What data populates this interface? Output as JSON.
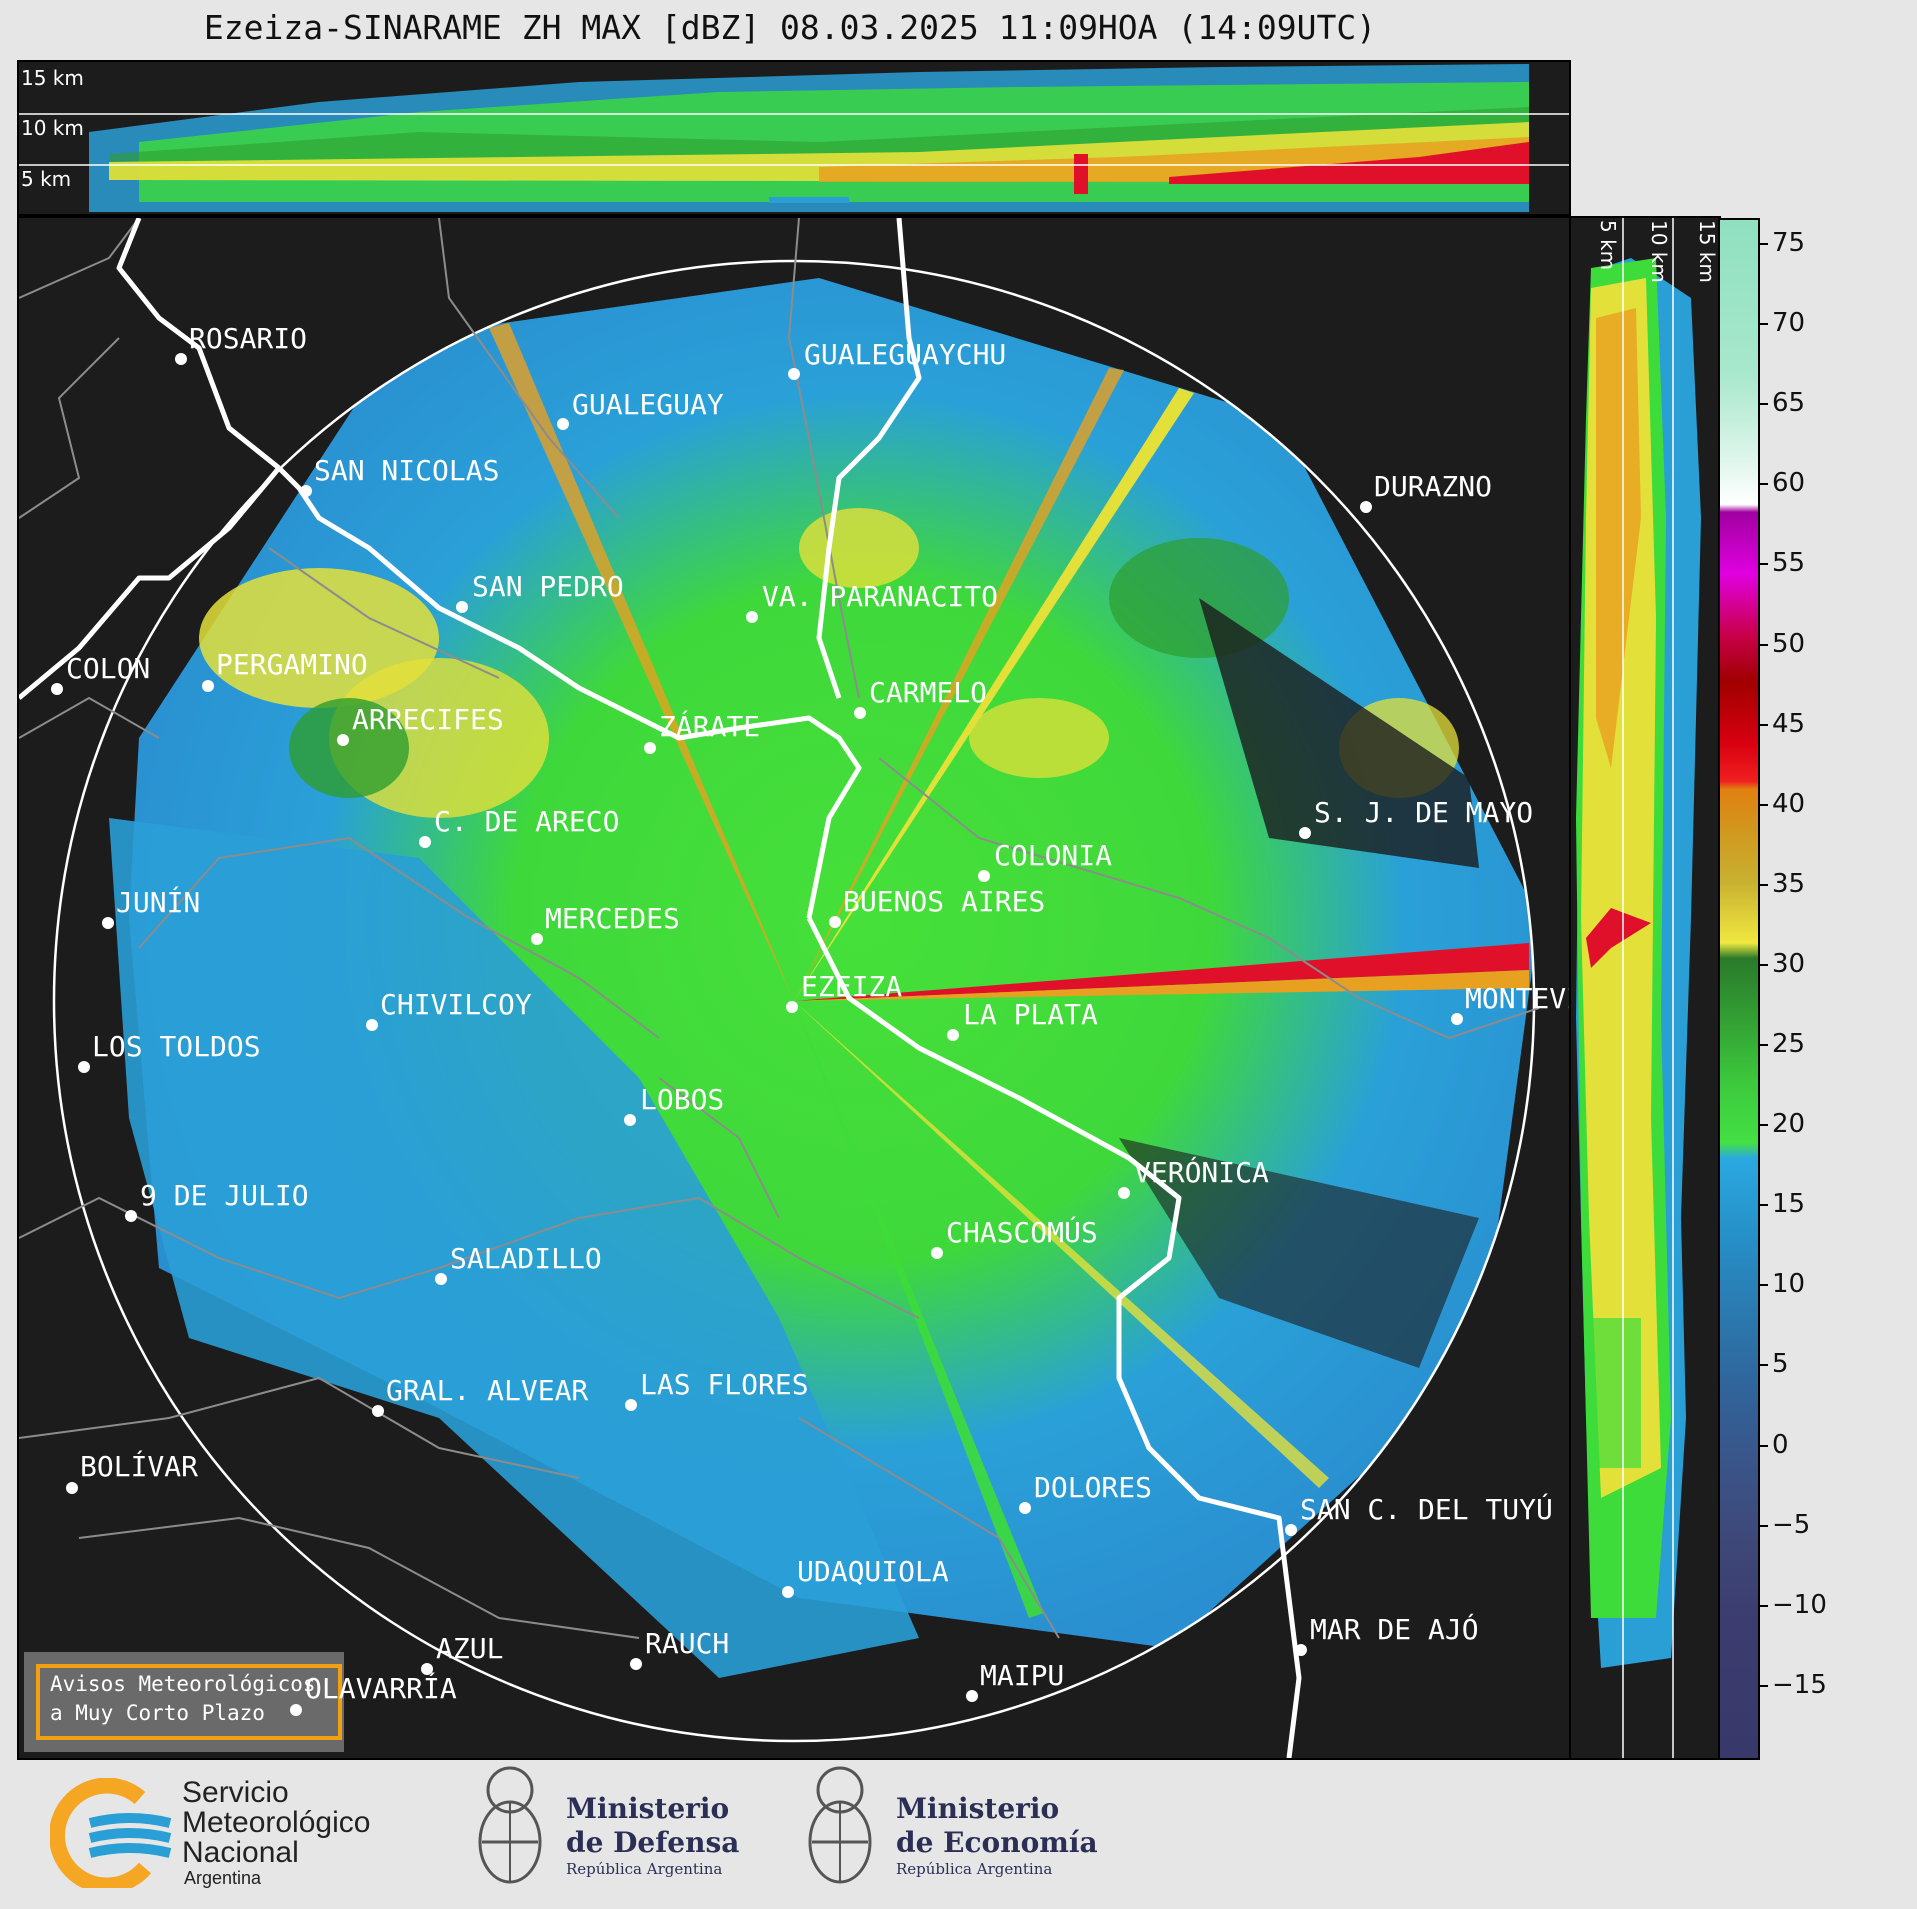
{
  "title": "Ezeiza-SINARAME ZH MAX [dBZ] 08.03.2025 11:09HOA (14:09UTC)",
  "top_panel": {
    "altitude_labels": [
      "15 km",
      "10 km",
      "5 km"
    ]
  },
  "side_panel": {
    "altitude_labels": [
      "5 km",
      "10 km",
      "15 km"
    ]
  },
  "colorbar": {
    "unit": "dBZ",
    "ticks": [
      "75",
      "70",
      "65",
      "60",
      "55",
      "50",
      "45",
      "40",
      "35",
      "30",
      "25",
      "20",
      "15",
      "10",
      "5",
      "0",
      "−5",
      "−10",
      "−15"
    ]
  },
  "cities": [
    {
      "name": "ROSARIO"
    },
    {
      "name": "GUALEGUAYCHU"
    },
    {
      "name": "GUALEGUAY"
    },
    {
      "name": "SAN NICOLAS"
    },
    {
      "name": "DURAZNO"
    },
    {
      "name": "SAN PEDRO"
    },
    {
      "name": "VA. PARANACITO"
    },
    {
      "name": "COLON"
    },
    {
      "name": "PERGAMINO"
    },
    {
      "name": "CARMELO"
    },
    {
      "name": "ARRECIFES"
    },
    {
      "name": "ZÁRATE"
    },
    {
      "name": "S. J. DE MAYO"
    },
    {
      "name": "C. DE ARECO"
    },
    {
      "name": "COLONIA"
    },
    {
      "name": "JUNÍN"
    },
    {
      "name": "BUENOS AIRES"
    },
    {
      "name": "MERCEDES"
    },
    {
      "name": "EZEIZA"
    },
    {
      "name": "MONTEVIDEO"
    },
    {
      "name": "CHIVILCOY"
    },
    {
      "name": "LA PLATA"
    },
    {
      "name": "LOS TOLDOS"
    },
    {
      "name": "LOBOS"
    },
    {
      "name": "VERÓNICA"
    },
    {
      "name": "9 DE JULIO"
    },
    {
      "name": "CHASCOMÚS"
    },
    {
      "name": "SALADILLO"
    },
    {
      "name": "GRAL. ALVEAR"
    },
    {
      "name": "LAS FLORES"
    },
    {
      "name": "BOLÍVAR"
    },
    {
      "name": "DOLORES"
    },
    {
      "name": "SAN C. DEL TUYÚ"
    },
    {
      "name": "UDAQUIOLA"
    },
    {
      "name": "MAR DE AJÓ"
    },
    {
      "name": "AZUL"
    },
    {
      "name": "RAUCH"
    },
    {
      "name": "OLAVARRÍA"
    },
    {
      "name": "MAIPU"
    }
  ],
  "alerts_box": {
    "line1": "Avisos Meteorológicos",
    "line2": "a Muy Corto Plazo"
  },
  "logos": {
    "smn": {
      "line1": "Servicio",
      "line2": "Meteorológico",
      "line3": "Nacional",
      "line4": "Argentina"
    },
    "defensa": {
      "line1": "Ministerio",
      "line2": "de Defensa",
      "line3": "República Argentina"
    },
    "economia": {
      "line1": "Ministerio",
      "line2": "de Economía",
      "line3": "República Argentina"
    }
  }
}
